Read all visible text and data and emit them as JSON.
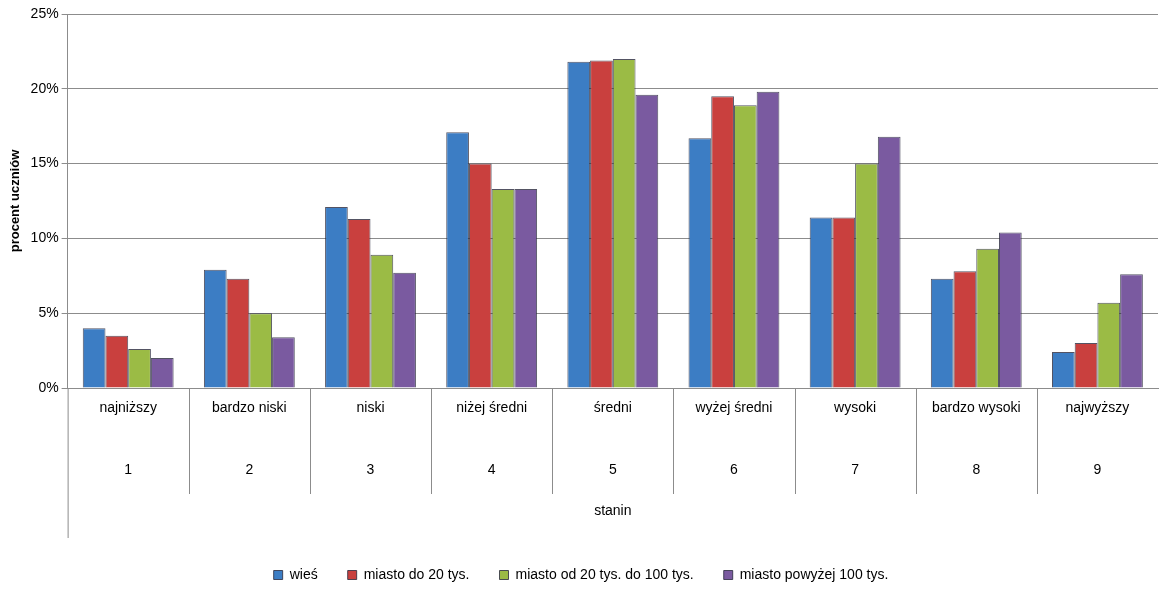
{
  "chart_data": {
    "type": "bar",
    "ylabel": "procent uczniów",
    "categories": [
      "najniższy",
      "bardzo niski",
      "niski",
      "niżej średni",
      "średni",
      "wyżej średni",
      "wysoki",
      "bardzo wysoki",
      "najwyższy"
    ],
    "series": [
      {
        "name": "wieś",
        "color": "#3c7dc4",
        "values": [
          4.0,
          7.9,
          12.1,
          17.1,
          21.8,
          16.7,
          11.4,
          7.3,
          2.4
        ]
      },
      {
        "name": "miasto do 20 tys.",
        "color": "#c9403e",
        "values": [
          3.5,
          7.3,
          11.3,
          15.0,
          21.9,
          19.5,
          11.4,
          7.8,
          3.0
        ]
      },
      {
        "name": "miasto od 20 tys. do 100 tys.",
        "color": "#9bbb45",
        "values": [
          2.6,
          5.0,
          8.9,
          13.3,
          22.0,
          18.9,
          15.0,
          9.3,
          5.7
        ]
      },
      {
        "name": "miasto powyżej 100 tys.",
        "color": "#7a5aa0",
        "values": [
          2.0,
          3.4,
          7.7,
          13.3,
          19.6,
          19.8,
          16.8,
          10.4,
          7.6
        ]
      }
    ],
    "ylim": [
      0,
      25
    ],
    "yticks": [
      {
        "value": 0,
        "label": "0%"
      },
      {
        "value": 5,
        "label": "5%"
      },
      {
        "value": 10,
        "label": "10%"
      },
      {
        "value": 15,
        "label": "15%"
      },
      {
        "value": 20,
        "label": "20%"
      },
      {
        "value": 25,
        "label": "25%"
      }
    ],
    "grid": "y",
    "legend": "bottom",
    "annotations": [
      "1",
      "2",
      "3",
      "4",
      "5",
      "6",
      "7",
      "8",
      "9",
      "stanin"
    ]
  }
}
